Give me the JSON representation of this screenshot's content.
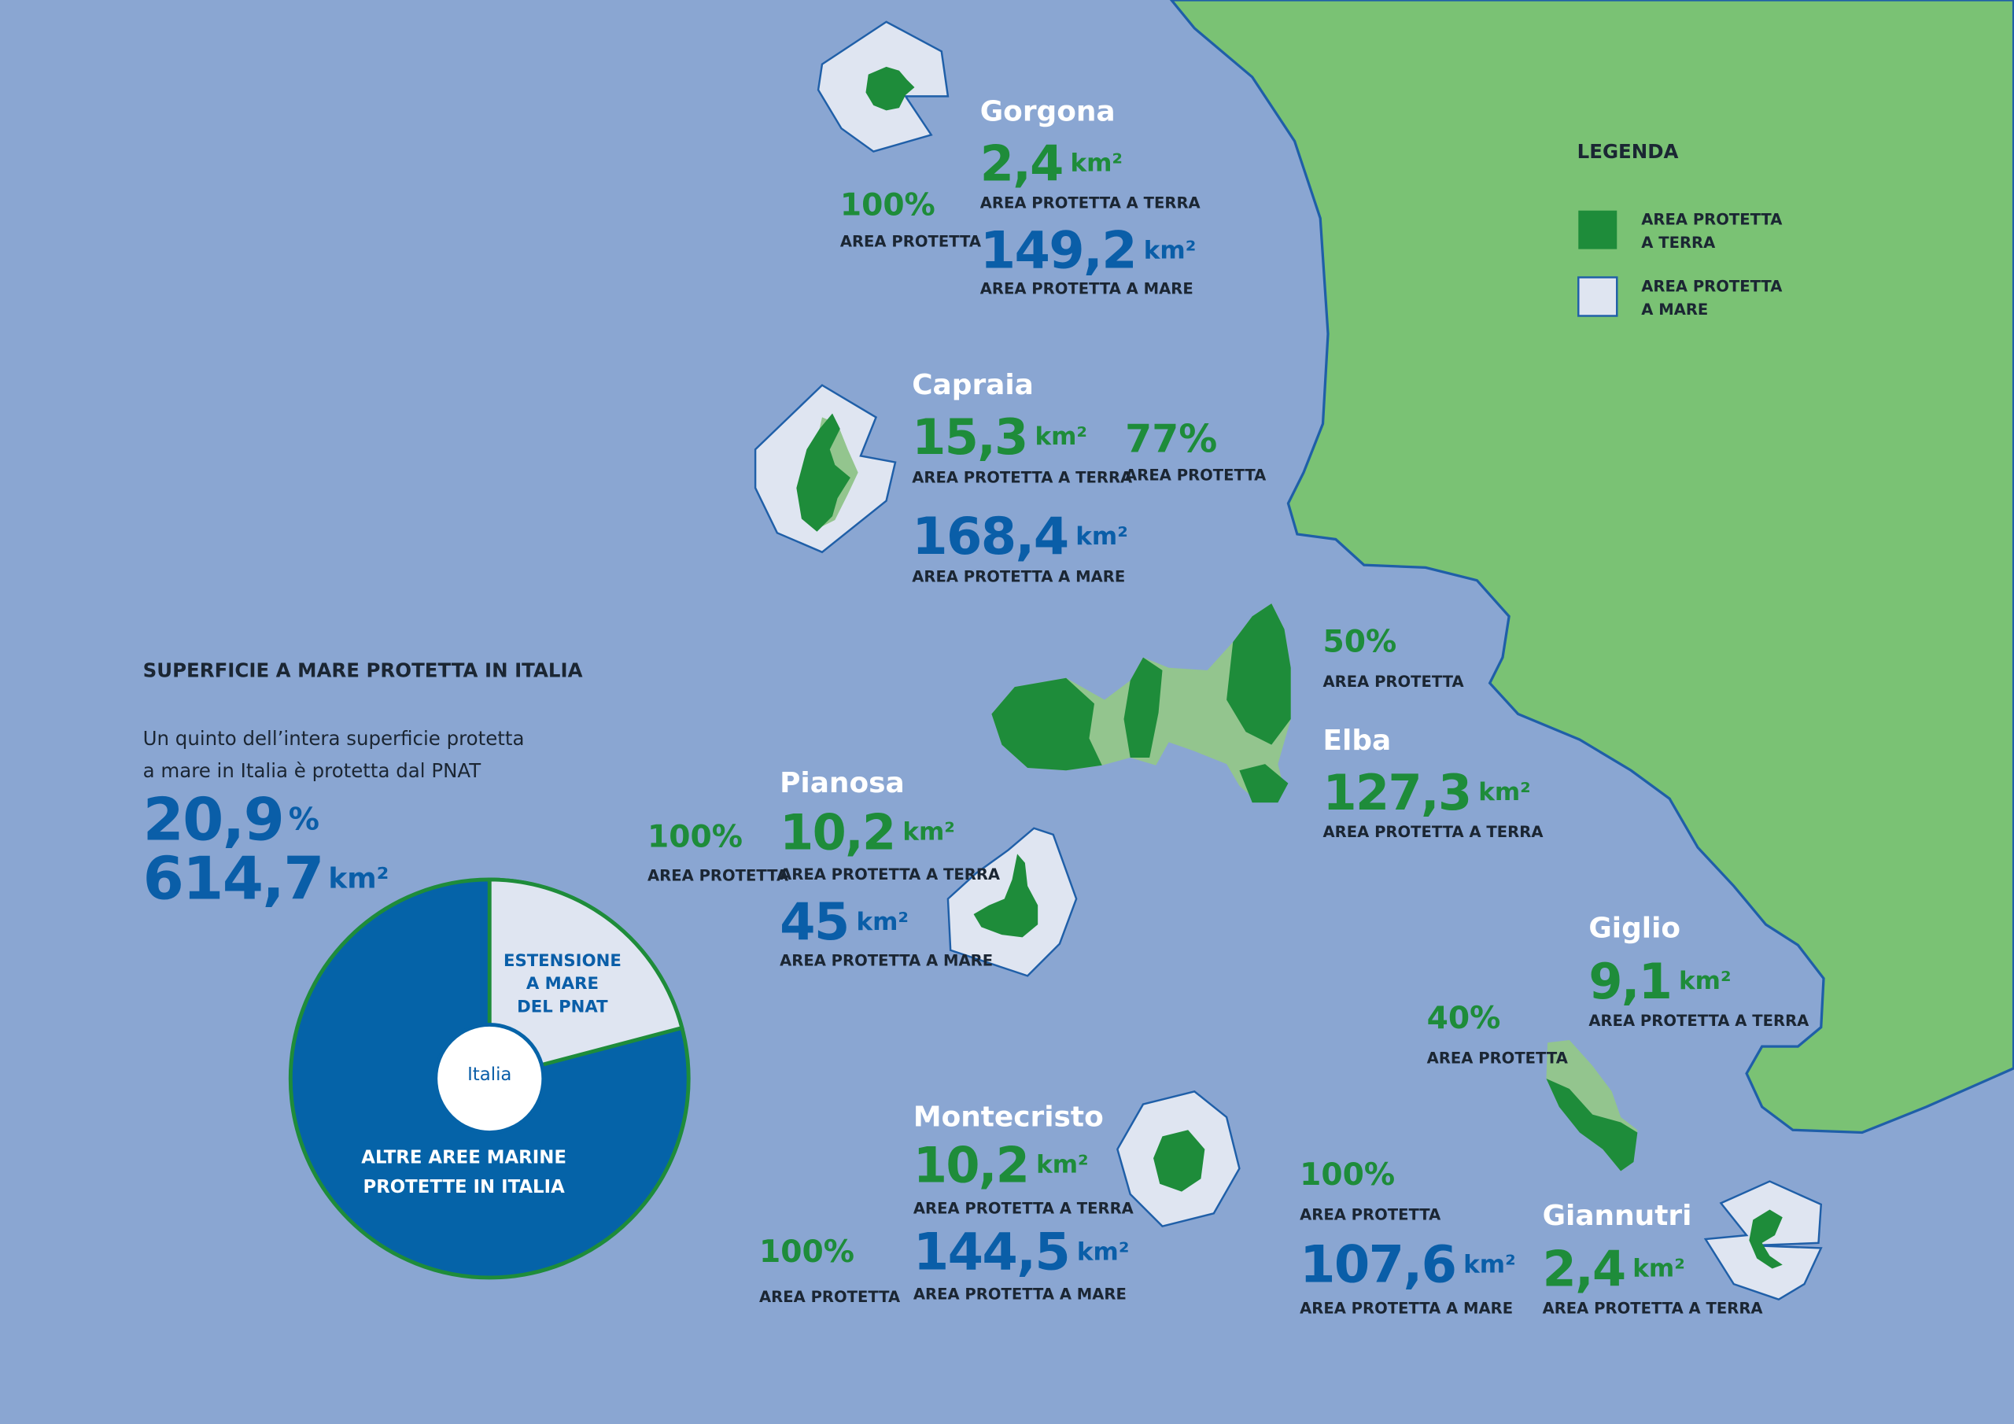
{
  "legend": {
    "title": "LEGENDA",
    "items": [
      {
        "lines": [
          "AREA PROTETTA",
          "A TERRA"
        ]
      },
      {
        "lines": [
          "AREA PROTETTA",
          "A MARE"
        ]
      }
    ]
  },
  "labels": {
    "land": "AREA PROTETTA A TERRA",
    "sea": "AREA PROTETTA A MARE",
    "protected": "AREA PROTETTA"
  },
  "units": {
    "km2": "km²"
  },
  "islands": [
    {
      "name": "Gorgona",
      "land_km2": "2,4",
      "sea_km2": "149,2",
      "percent": "100%"
    },
    {
      "name": "Capraia",
      "land_km2": "15,3",
      "sea_km2": "168,4",
      "percent": "77%"
    },
    {
      "name": "Elba",
      "land_km2": "127,3",
      "percent": "50%"
    },
    {
      "name": "Pianosa",
      "land_km2": "10,2",
      "sea_km2": "45",
      "percent": "100%"
    },
    {
      "name": "Giglio",
      "land_km2": "9,1",
      "percent": "40%"
    },
    {
      "name": "Montecristo",
      "land_km2": "10,2",
      "sea_km2": "144,5",
      "percent": "100%"
    },
    {
      "name": "Giannutri",
      "land_km2": "2,4",
      "sea_km2": "107,6",
      "percent": "100%"
    }
  ],
  "summary": {
    "title": "SUPERFICIE A MARE PROTETTA IN ITALIA",
    "text": [
      "Un quinto dell’intera superficie protetta",
      "a mare in Italia è protetta dal PNAT"
    ],
    "share": {
      "value": 20.9,
      "label": "20,9"
    },
    "share_unit": "%",
    "area": "614,7"
  },
  "pie": {
    "pnat": [
      "ESTENSIONE",
      "A MARE",
      "DEL PNAT"
    ],
    "other": [
      "ALTRE AREE MARINE",
      "PROTETTE IN ITALIA"
    ],
    "center": "Italia"
  }
}
